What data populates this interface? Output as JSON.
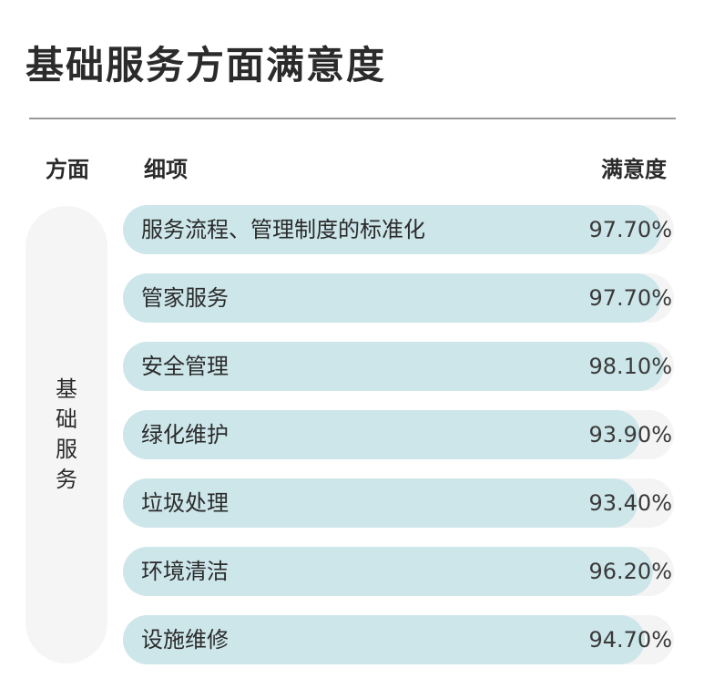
{
  "title": "基础服务方面满意度",
  "headers": {
    "aspect": "方面",
    "item": "细项",
    "satisfaction": "满意度"
  },
  "aspect": "基础服务",
  "colors": {
    "bar": "#cde6ea",
    "track": "#f4f4f4",
    "panel": "#f5f5f5"
  },
  "chart_data": {
    "type": "bar",
    "orientation": "horizontal",
    "categories": [
      "服务流程、管理制度的标准化",
      "管家服务",
      "安全管理",
      "绿化维护",
      "垃圾处理",
      "环境清洁",
      "设施维修"
    ],
    "values": [
      97.7,
      97.7,
      98.1,
      93.9,
      93.4,
      96.2,
      94.7
    ],
    "value_labels": [
      "97.70%",
      "97.70%",
      "98.10%",
      "93.90%",
      "93.40%",
      "96.20%",
      "94.70%"
    ],
    "xlim": [
      0,
      100
    ],
    "title": "基础服务方面满意度"
  }
}
